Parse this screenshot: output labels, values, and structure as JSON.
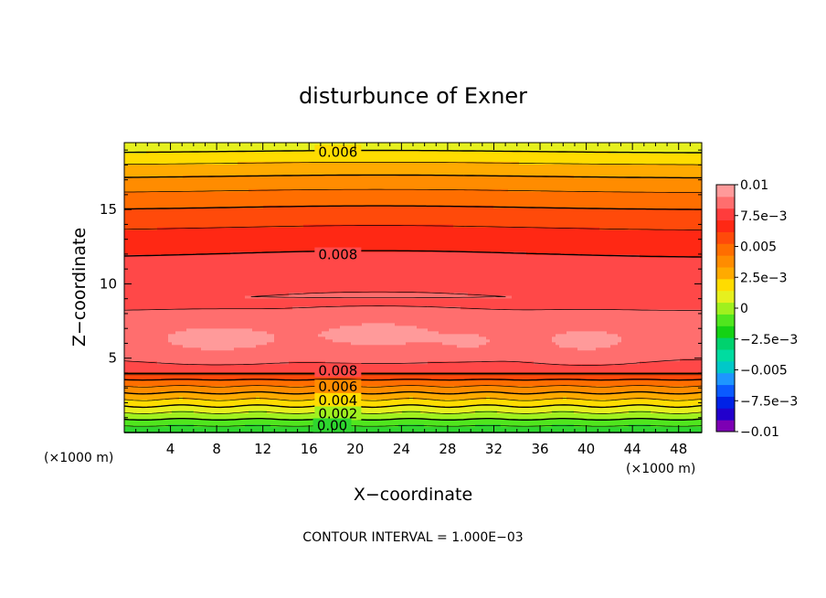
{
  "chart_data": {
    "type": "contour",
    "title": "disturbunce of Exner",
    "xlabel": "X−coordinate",
    "ylabel": "Z−coordinate",
    "x_units": "(×1000 m)",
    "z_units": "(×1000 m)",
    "xlim": [
      0,
      50
    ],
    "zlim": [
      0,
      19.5
    ],
    "xticks": [
      4,
      8,
      12,
      16,
      20,
      24,
      28,
      32,
      36,
      40,
      44,
      48
    ],
    "zticks": [
      5,
      10,
      15
    ],
    "footer": "CONTOUR INTERVAL = 1.000E−03",
    "colorbar": {
      "range": [
        -0.01,
        0.01
      ],
      "tick_values": [
        0.01,
        0.0075,
        0.005,
        0.0025,
        0,
        -0.0025,
        -0.005,
        -0.0075,
        -0.01
      ],
      "tick_labels": [
        "0.01",
        "7.5e−3",
        "0.005",
        "2.5e−3",
        "0",
        "−2.5e−3",
        "−0.005",
        "−7.5e−3",
        "−0.01"
      ],
      "colors": [
        "#7d00b4",
        "#2200cc",
        "#0022e6",
        "#0a5aff",
        "#1e96ff",
        "#00c8c8",
        "#00dca0",
        "#00d26e",
        "#14d214",
        "#50e61e",
        "#a0f01e",
        "#e6f01e",
        "#ffdc00",
        "#ffaa00",
        "#ff8c00",
        "#ff6e00",
        "#ff4a0a",
        "#ff2814",
        "#ff3c3c",
        "#ff6e6e",
        "#ff9a9a"
      ]
    },
    "contour_labels": [
      {
        "text": "0.006",
        "x": 18.5,
        "z": 18.8
      },
      {
        "text": "0.008",
        "x": 18.5,
        "z": 11.9
      },
      {
        "text": "0.008",
        "x": 18.5,
        "z": 4.1
      },
      {
        "text": "0.006",
        "x": 18.5,
        "z": 3.0
      },
      {
        "text": "0.004",
        "x": 18.5,
        "z": 2.1
      },
      {
        "text": "0.002",
        "x": 18.5,
        "z": 1.2
      },
      {
        "text": "0.00",
        "x": 18.0,
        "z": 0.4
      }
    ]
  }
}
